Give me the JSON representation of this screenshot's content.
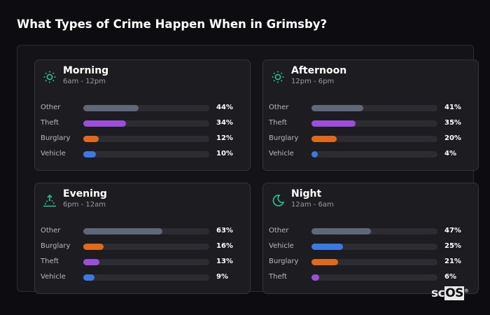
{
  "title": "What Types of Crime Happen When in Grimsby?",
  "colors": {
    "Other": "#5f6879",
    "Theft": "#9b4fd8",
    "Burglary": "#e06a1c",
    "Vehicle": "#3b7ae0",
    "icon": "#27c48f"
  },
  "cards": [
    {
      "name": "Morning",
      "time": "6am - 12pm",
      "icon": "sun-icon",
      "rows": [
        {
          "label": "Other",
          "value": 44,
          "text": "44%"
        },
        {
          "label": "Theft",
          "value": 34,
          "text": "34%"
        },
        {
          "label": "Burglary",
          "value": 12,
          "text": "12%"
        },
        {
          "label": "Vehicle",
          "value": 10,
          "text": "10%"
        }
      ]
    },
    {
      "name": "Afternoon",
      "time": "12pm - 6pm",
      "icon": "sun-icon",
      "rows": [
        {
          "label": "Other",
          "value": 41,
          "text": "41%"
        },
        {
          "label": "Theft",
          "value": 35,
          "text": "35%"
        },
        {
          "label": "Burglary",
          "value": 20,
          "text": "20%"
        },
        {
          "label": "Vehicle",
          "value": 4,
          "text": "4%"
        }
      ]
    },
    {
      "name": "Evening",
      "time": "6pm - 12am",
      "icon": "sunset-icon",
      "rows": [
        {
          "label": "Other",
          "value": 63,
          "text": "63%"
        },
        {
          "label": "Burglary",
          "value": 16,
          "text": "16%"
        },
        {
          "label": "Theft",
          "value": 13,
          "text": "13%"
        },
        {
          "label": "Vehicle",
          "value": 9,
          "text": "9%"
        }
      ]
    },
    {
      "name": "Night",
      "time": "12am - 6am",
      "icon": "moon-icon",
      "rows": [
        {
          "label": "Other",
          "value": 47,
          "text": "47%"
        },
        {
          "label": "Vehicle",
          "value": 25,
          "text": "25%"
        },
        {
          "label": "Burglary",
          "value": 21,
          "text": "21%"
        },
        {
          "label": "Theft",
          "value": 6,
          "text": "6%"
        }
      ]
    }
  ],
  "logo": {
    "text": "scOS"
  }
}
